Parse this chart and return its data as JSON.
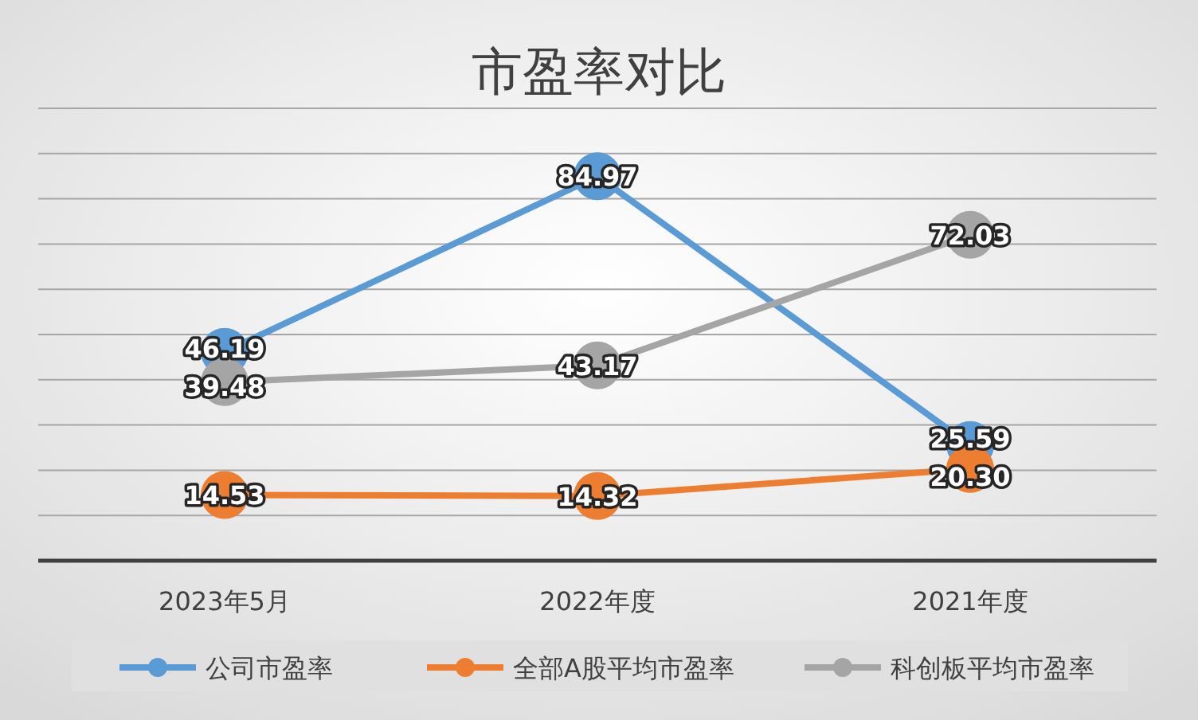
{
  "chart_data": {
    "type": "line",
    "title": "市盈率对比",
    "categories": [
      "2023年5月",
      "2022年度",
      "2021年度"
    ],
    "series": [
      {
        "name": "公司市盈率",
        "color": "#5b9bd5",
        "values": [
          46.19,
          84.97,
          25.59
        ],
        "value_labels": [
          "46.19",
          "84.97",
          "25.59"
        ]
      },
      {
        "name": "全部A股平均市盈率",
        "color": "#ed7d31",
        "values": [
          14.53,
          14.32,
          20.3
        ],
        "value_labels": [
          "14.53",
          "14.32",
          "20.30"
        ]
      },
      {
        "name": "科创板平均市盈率",
        "color": "#a5a5a5",
        "values": [
          39.48,
          43.17,
          72.03
        ],
        "value_labels": [
          "39.48",
          "43.17",
          "72.03"
        ]
      }
    ],
    "ylim": [
      0,
      100
    ],
    "yticks": [
      {
        "value": 0,
        "label": null
      },
      {
        "value": 10,
        "label": null
      },
      {
        "value": 20,
        "label": null
      },
      {
        "value": 30,
        "label": null
      },
      {
        "value": 40,
        "label": null
      },
      {
        "value": 50,
        "label": null
      },
      {
        "value": 60,
        "label": null
      },
      {
        "value": 70,
        "label": null
      },
      {
        "value": 80,
        "label": null
      },
      {
        "value": 90,
        "label": null
      },
      {
        "value": 100,
        "label": null
      }
    ],
    "tick_labels": "x",
    "grid": "y",
    "legend": "bottom",
    "marker": "circle",
    "line_style": "solid"
  }
}
